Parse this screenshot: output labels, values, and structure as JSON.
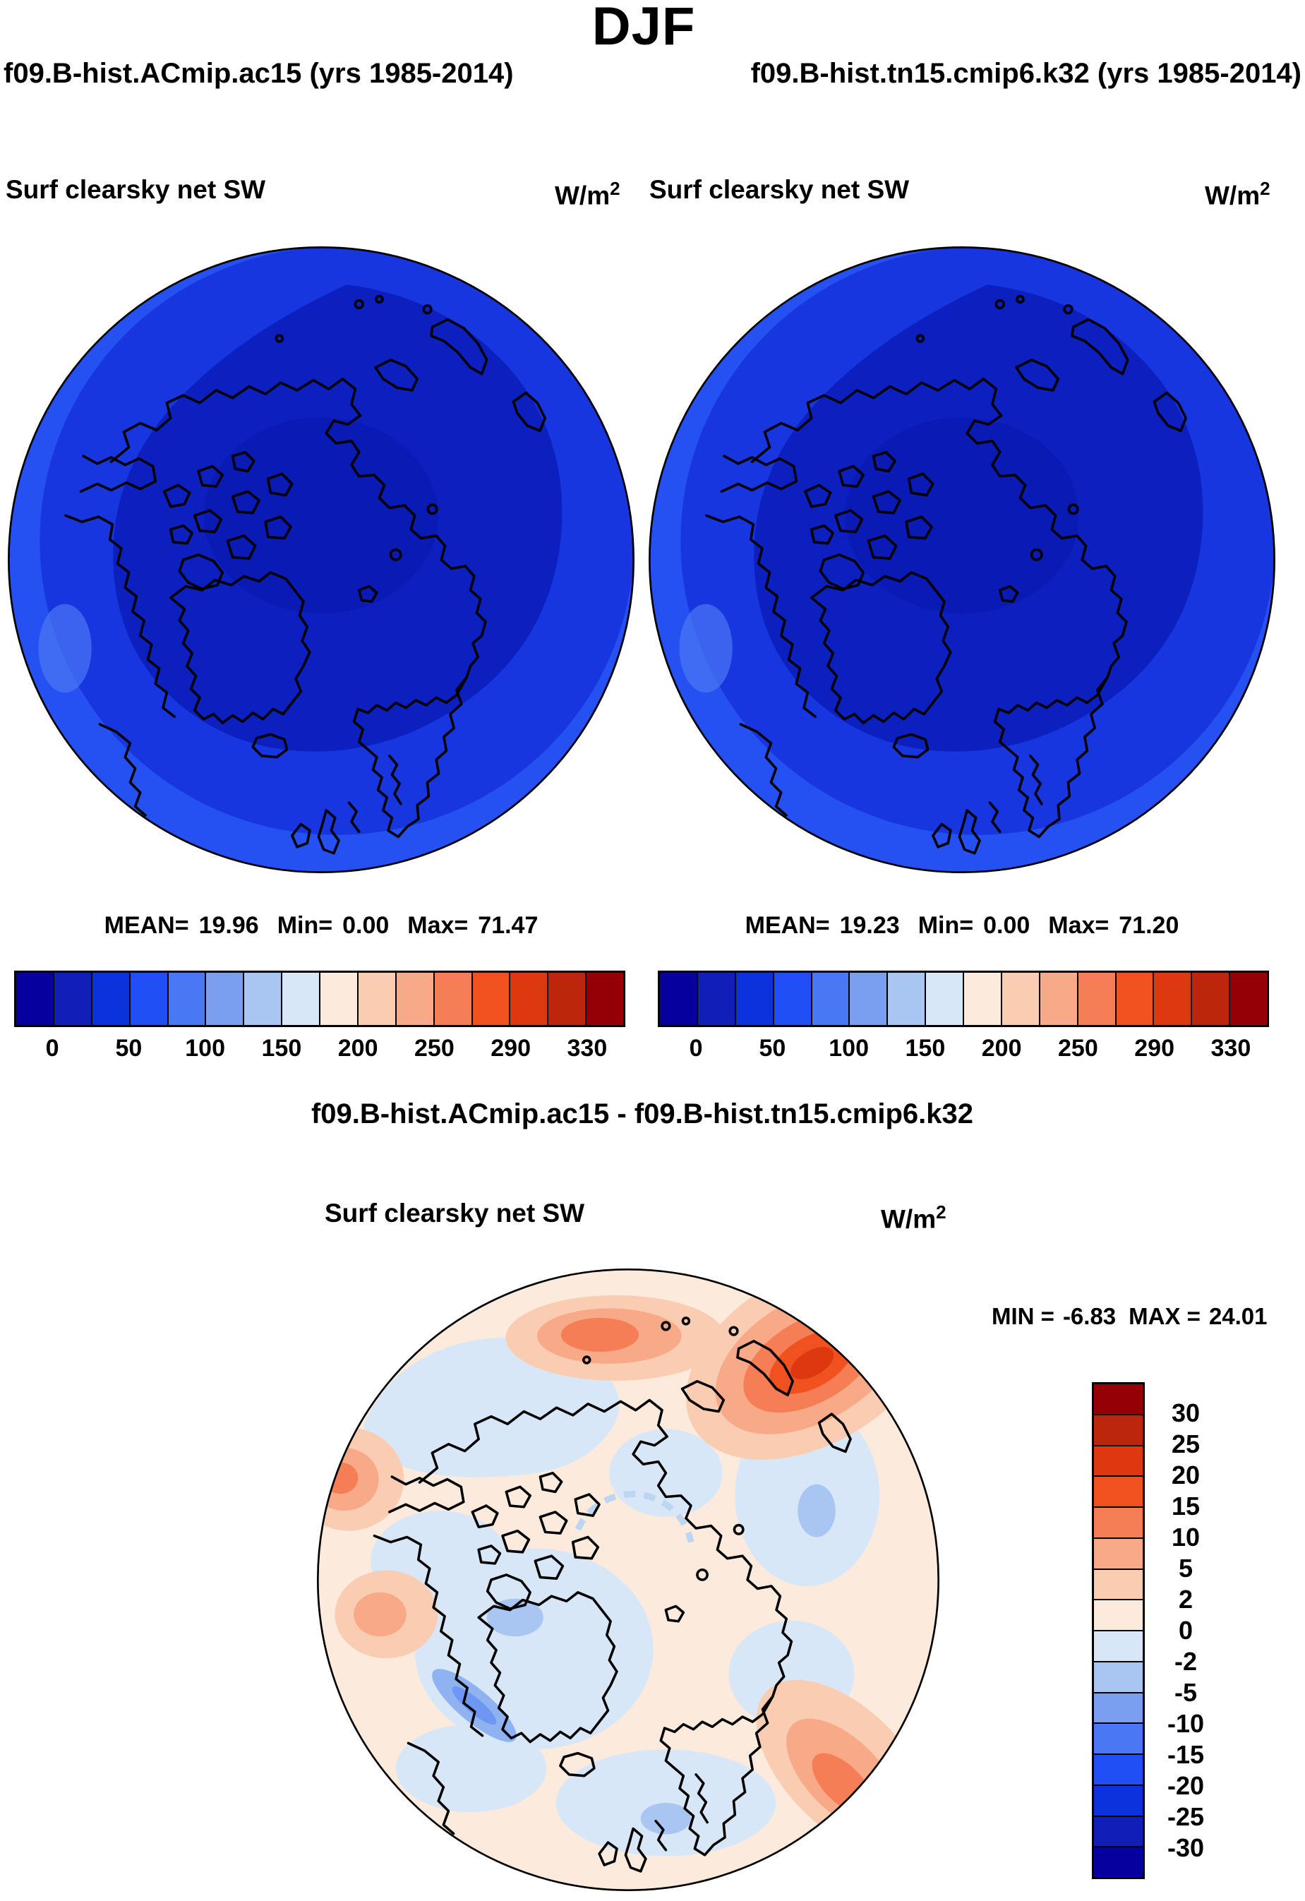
{
  "title": "DJF",
  "subtitle_left": "f09.B-hist.ACmip.ac15 (yrs 1985-2014)",
  "subtitle_right": "f09.B-hist.tn15.cmip6.k32 (yrs 1985-2014)",
  "panels": [
    {
      "var_label": "Surf clearsky net SW",
      "units_base": "W/m",
      "units_exp": "2",
      "stats": {
        "mean_label": "MEAN=",
        "mean": "19.96",
        "min_label": "Min=",
        "min": "0.00",
        "max_label": "Max=",
        "max": "71.47"
      }
    },
    {
      "var_label": "Surf clearsky net SW",
      "units_base": "W/m",
      "units_exp": "2",
      "stats": {
        "mean_label": "MEAN=",
        "mean": "19.23",
        "min_label": "Min=",
        "min": "0.00",
        "max_label": "Max=",
        "max": "71.20"
      }
    }
  ],
  "colorbar_top": {
    "colors": [
      "#05009E",
      "#111FB8",
      "#0B32DC",
      "#2050F5",
      "#4A77F4",
      "#7B9FF0",
      "#A9C5F2",
      "#D7E7F8",
      "#FCEBDC",
      "#FACDB2",
      "#F8A987",
      "#F57E55",
      "#F1511E",
      "#DD3810",
      "#BC270B",
      "#940004"
    ],
    "tick_labels": [
      "0",
      "50",
      "100",
      "150",
      "200",
      "250",
      "290",
      "330"
    ],
    "tick_positions": [
      1,
      3,
      5,
      7,
      9,
      11,
      13,
      15
    ]
  },
  "diff": {
    "title": "f09.B-hist.ACmip.ac15 - f09.B-hist.tn15.cmip6.k32",
    "var_label": "Surf clearsky net SW",
    "units_base": "W/m",
    "units_exp": "2",
    "min_label": "MIN =",
    "min": "-6.83",
    "max_label": "MAX =",
    "max": "24.01",
    "colorbar": {
      "colors": [
        "#940004",
        "#BC270B",
        "#DD3810",
        "#F1511E",
        "#F57E55",
        "#F8A987",
        "#FACDB2",
        "#FCEBDC",
        "#D7E7F8",
        "#A9C5F2",
        "#7B9FF0",
        "#4A77F4",
        "#2050F5",
        "#0B32DC",
        "#111FB8",
        "#05009E"
      ],
      "labels": [
        "30",
        "25",
        "20",
        "15",
        "10",
        "5",
        "2",
        "0",
        "-2",
        "-5",
        "-10",
        "-15",
        "-20",
        "-25",
        "-30"
      ]
    }
  },
  "chart_data": [
    {
      "type": "heatmap",
      "subtype": "filled-contour-map",
      "projection": "north-polar-stereographic",
      "season": "DJF",
      "run": "f09.B-hist.ACmip.ac15 (yrs 1985-2014)",
      "variable": "Surf clearsky net SW",
      "units": "W/m2",
      "stats": {
        "mean": 19.96,
        "min": 0.0,
        "max": 71.47
      },
      "contour_levels": [
        0,
        25,
        50,
        75,
        100,
        125,
        150,
        175,
        200,
        225,
        250,
        270,
        290,
        310,
        330
      ],
      "labeled_ticks": [
        0,
        50,
        100,
        150,
        200,
        250,
        290,
        330
      ],
      "palette_blue_to_red": [
        "#05009E",
        "#111FB8",
        "#0B32DC",
        "#2050F5",
        "#4A77F4",
        "#7B9FF0",
        "#A9C5F2",
        "#D7E7F8",
        "#FCEBDC",
        "#FACDB2",
        "#F8A987",
        "#F57E55",
        "#F1511E",
        "#DD3810",
        "#BC270B",
        "#940004"
      ],
      "legend_position": "bottom",
      "description": "Arctic polar map, field nearly all in the 0-75 W/m2 range (dark to medium blues), brighter blue annulus toward the map rim, black coastlines."
    },
    {
      "type": "heatmap",
      "subtype": "filled-contour-map",
      "projection": "north-polar-stereographic",
      "season": "DJF",
      "run": "f09.B-hist.tn15.cmip6.k32 (yrs 1985-2014)",
      "variable": "Surf clearsky net SW",
      "units": "W/m2",
      "stats": {
        "mean": 19.23,
        "min": 0.0,
        "max": 71.2
      },
      "contour_levels": [
        0,
        25,
        50,
        75,
        100,
        125,
        150,
        175,
        200,
        225,
        250,
        270,
        290,
        310,
        330
      ],
      "labeled_ticks": [
        0,
        50,
        100,
        150,
        200,
        250,
        290,
        330
      ],
      "legend_position": "bottom",
      "description": "Visually identical to the first panel: dark blue interior with lighter blue ring near the edge."
    },
    {
      "type": "heatmap",
      "subtype": "difference-map",
      "projection": "north-polar-stereographic",
      "title": "f09.B-hist.ACmip.ac15 - f09.B-hist.tn15.cmip6.k32",
      "variable": "Surf clearsky net SW",
      "units": "W/m2",
      "stats": {
        "min": -6.83,
        "max": 24.01
      },
      "contour_levels": [
        -30,
        -25,
        -20,
        -15,
        -10,
        -5,
        -2,
        0,
        2,
        5,
        10,
        15,
        20,
        25,
        30
      ],
      "legend_position": "right-vertical",
      "description": "Mostly pale cream (0 to 2) and pale blue (-2 to 0); strong orange/red positive anomaly (up to ~24) over the Kara/Barents sector at upper right, warm band along top coast, orange spots at left edge and lower-right rim; small blue negative streak (-5 to -10) near Baffin Bay."
    }
  ]
}
